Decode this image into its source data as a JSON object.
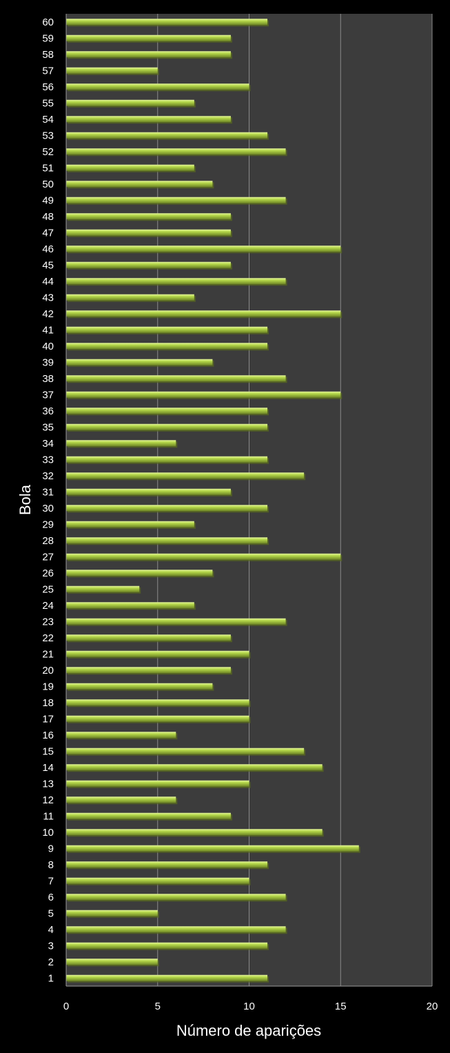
{
  "chart_data": {
    "type": "bar",
    "orientation": "horizontal",
    "xlabel": "Número de aparições",
    "ylabel": "Bola",
    "xlim": [
      0,
      20
    ],
    "xticks": [
      0,
      5,
      10,
      15,
      20
    ],
    "grid": "vertical major gridlines",
    "colors": {
      "background": "#000000",
      "plot_area": "#3c3c3c",
      "bar": "#b5d84a",
      "bar_shadow": "#5a6b1c",
      "gridline": "#8a8a8a",
      "text": "#ffffff"
    },
    "categories": [
      "1",
      "2",
      "3",
      "4",
      "5",
      "6",
      "7",
      "8",
      "9",
      "10",
      "11",
      "12",
      "13",
      "14",
      "15",
      "16",
      "17",
      "18",
      "19",
      "20",
      "21",
      "22",
      "23",
      "24",
      "25",
      "26",
      "27",
      "28",
      "29",
      "30",
      "31",
      "32",
      "33",
      "34",
      "35",
      "36",
      "37",
      "38",
      "39",
      "40",
      "41",
      "42",
      "43",
      "44",
      "45",
      "46",
      "47",
      "48",
      "49",
      "50",
      "51",
      "52",
      "53",
      "54",
      "55",
      "56",
      "57",
      "58",
      "59",
      "60"
    ],
    "values": [
      11,
      5,
      11,
      12,
      5,
      12,
      10,
      11,
      16,
      14,
      9,
      6,
      10,
      14,
      13,
      6,
      10,
      10,
      8,
      9,
      10,
      9,
      12,
      7,
      4,
      8,
      15,
      11,
      7,
      11,
      9,
      13,
      11,
      6,
      11,
      11,
      15,
      12,
      8,
      11,
      11,
      15,
      7,
      12,
      9,
      15,
      9,
      9,
      12,
      8,
      7,
      12,
      11,
      9,
      7,
      10,
      5,
      9,
      9,
      11
    ]
  }
}
